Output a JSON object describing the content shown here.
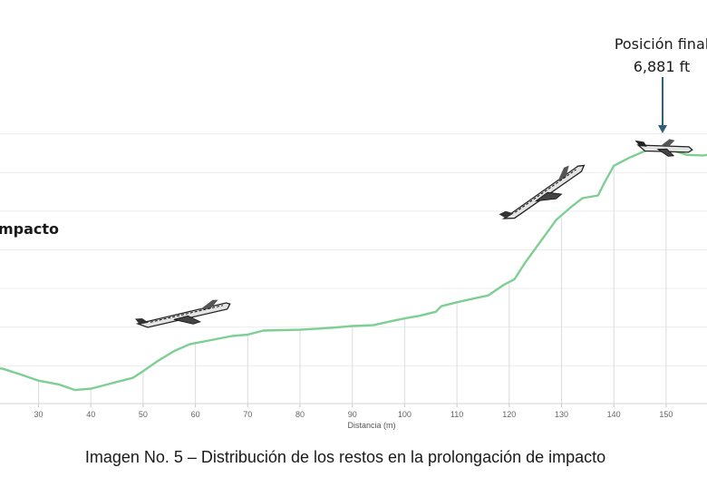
{
  "chart_data": {
    "type": "line",
    "title": "",
    "xlabel": "Distancia (m)",
    "ylabel": "",
    "xlim": [
      20,
      155
    ],
    "ylim": [
      0,
      10
    ],
    "x_ticks": [
      30,
      40,
      50,
      60,
      70,
      80,
      90,
      100,
      110,
      120,
      130,
      140,
      150
    ],
    "grid": true,
    "color": "#7dcf94",
    "series": [
      {
        "x": [
          20,
          23,
          27,
          30,
          34,
          37,
          40,
          44,
          48,
          50,
          53,
          56,
          59,
          63,
          67,
          70,
          73,
          77,
          80,
          84,
          87,
          90,
          94,
          97,
          100,
          103,
          106,
          107,
          110,
          113,
          116,
          119,
          121,
          123,
          126,
          129,
          132,
          134,
          137,
          138,
          140,
          143,
          146,
          148,
          151,
          154,
          157,
          160
        ],
        "y": [
          1.25,
          1.3,
          1.05,
          0.85,
          0.7,
          0.5,
          0.55,
          0.75,
          0.95,
          1.2,
          1.6,
          1.95,
          2.2,
          2.35,
          2.5,
          2.55,
          2.7,
          2.72,
          2.73,
          2.78,
          2.82,
          2.87,
          2.9,
          3.03,
          3.15,
          3.25,
          3.4,
          3.6,
          3.75,
          3.88,
          4.0,
          4.4,
          4.6,
          5.2,
          6.0,
          6.8,
          7.3,
          7.6,
          7.7,
          8.1,
          8.8,
          9.1,
          9.35,
          9.45,
          9.38,
          9.2,
          9.18,
          9.25
        ]
      }
    ]
  },
  "annotations": {
    "final_position_line1": "Posición final",
    "final_position_line2": "6,881 ft",
    "impact_label": "Impacto",
    "arrow_color": "#2f5f7a"
  },
  "caption": "Imagen No. 5 – Distribución de los restos en la prolongación de impacto"
}
